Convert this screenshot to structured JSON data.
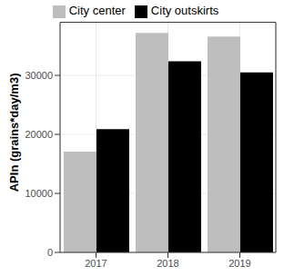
{
  "chart_data": {
    "type": "bar",
    "y_label": "APIn (grains*day/m3)",
    "categories": [
      "2017",
      "2018",
      "2019"
    ],
    "series": [
      {
        "name": "City center",
        "color": "#bebebe",
        "values": [
          17100,
          37200,
          36600
        ]
      },
      {
        "name": "City outskirts",
        "color": "#000000",
        "values": [
          20900,
          32400,
          30500
        ]
      }
    ],
    "ylim": [
      0,
      39000
    ],
    "yticks": [
      0,
      10000,
      20000,
      30000
    ],
    "grid": true,
    "legend": "top"
  }
}
